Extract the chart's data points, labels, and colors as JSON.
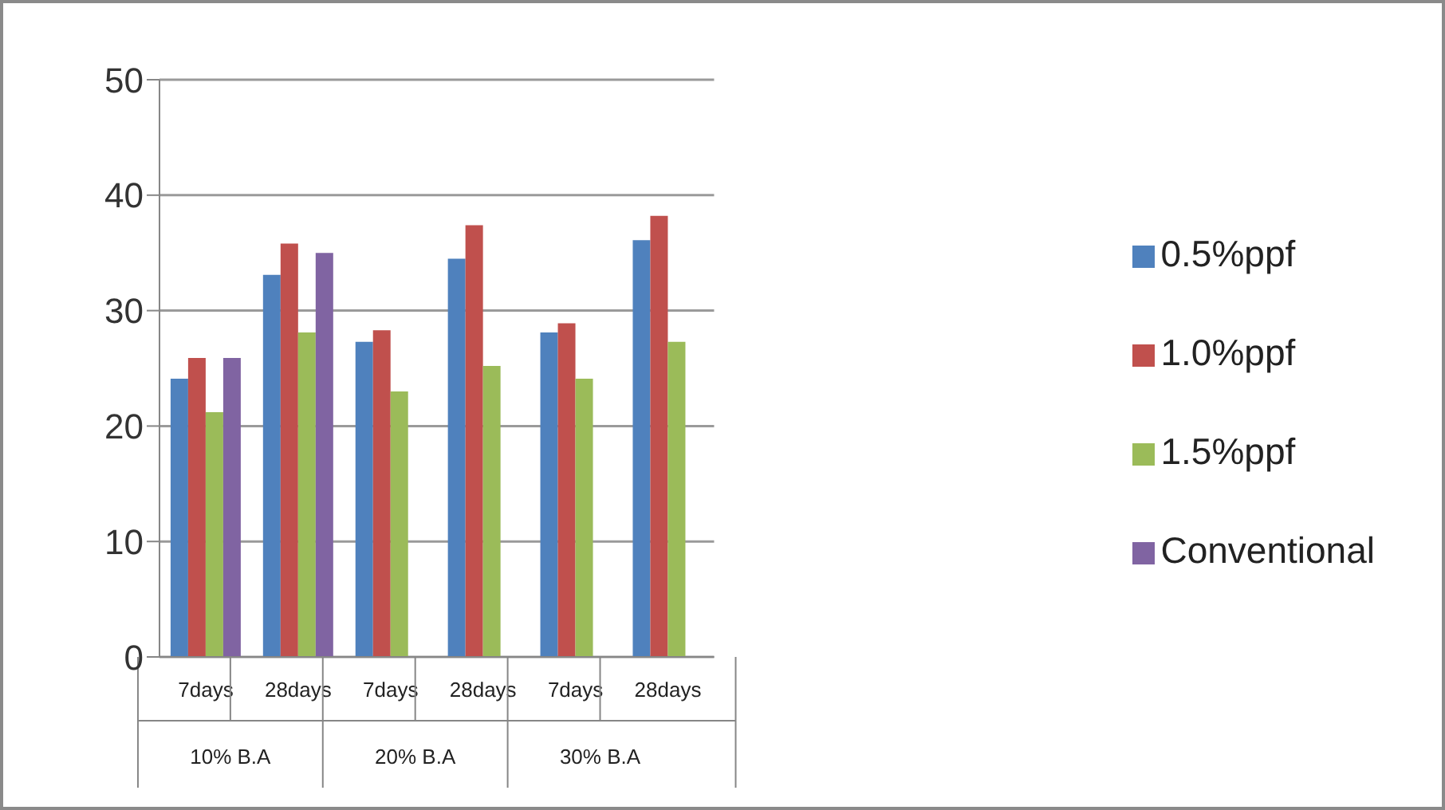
{
  "chart_data": {
    "type": "bar",
    "categories": [
      "7days",
      "28days",
      "7days",
      "28days",
      "7days",
      "28days"
    ],
    "annotations": [
      "10% B.A",
      "20% B.A",
      "30% B.A"
    ],
    "series": [
      {
        "name": "0.5%ppf",
        "color": "#4f81bd",
        "values": [
          24.1,
          33.1,
          27.3,
          34.5,
          28.1,
          36.1
        ]
      },
      {
        "name": "1.0%ppf",
        "color": "#c0504d",
        "values": [
          25.9,
          35.8,
          28.3,
          37.4,
          28.9,
          38.2
        ]
      },
      {
        "name": "1.5%ppf",
        "color": "#9bbb59",
        "values": [
          21.2,
          28.1,
          23.0,
          25.2,
          24.1,
          27.3
        ]
      },
      {
        "name": "Conventional",
        "color": "#8064a2",
        "values": [
          25.9,
          35.0,
          null,
          null,
          null,
          null
        ]
      }
    ],
    "ylim": [
      0,
      50
    ],
    "yticks": [
      0,
      10,
      20,
      30,
      40,
      50
    ],
    "grid": "y",
    "legend": "right"
  }
}
